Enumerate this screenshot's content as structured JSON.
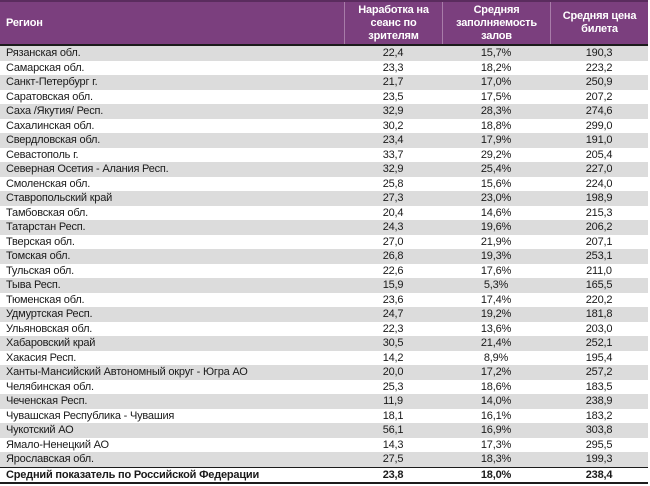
{
  "colors": {
    "header_bg": "#7B3F7E",
    "header_top_border": "#5A2C5E",
    "header_divider": "#A87CA9",
    "row_alt_bg": "#DCDCDC",
    "row_bg": "#FFFFFF",
    "dark_border": "#1C1C1C",
    "header_text": "#FFFFFF",
    "body_text": "#1A1A1A"
  },
  "table": {
    "headers": {
      "region": "Регион",
      "per_session": "Наработка на сеанс по зрителям",
      "occupancy": "Средняя заполняемость залов",
      "price": "Средняя цена билета"
    },
    "rows": [
      {
        "region": "Рязанская обл.",
        "per_session": "22,4",
        "occupancy": "15,7%",
        "price": "190,3"
      },
      {
        "region": "Самарская обл.",
        "per_session": "23,3",
        "occupancy": "18,2%",
        "price": "223,2"
      },
      {
        "region": "Санкт-Петербург г.",
        "per_session": "21,7",
        "occupancy": "17,0%",
        "price": "250,9"
      },
      {
        "region": "Саратовская обл.",
        "per_session": "23,5",
        "occupancy": "17,5%",
        "price": "207,2"
      },
      {
        "region": "Саха /Якутия/ Респ.",
        "per_session": "32,9",
        "occupancy": "28,3%",
        "price": "274,6"
      },
      {
        "region": "Сахалинская обл.",
        "per_session": "30,2",
        "occupancy": "18,8%",
        "price": "299,0"
      },
      {
        "region": "Свердловская обл.",
        "per_session": "23,4",
        "occupancy": "17,9%",
        "price": "191,0"
      },
      {
        "region": "Севастополь г.",
        "per_session": "33,7",
        "occupancy": "29,2%",
        "price": "205,4"
      },
      {
        "region": "Северная Осетия - Алания Респ.",
        "per_session": "32,9",
        "occupancy": "25,4%",
        "price": "227,0"
      },
      {
        "region": "Смоленская обл.",
        "per_session": "25,8",
        "occupancy": "15,6%",
        "price": "224,0"
      },
      {
        "region": "Ставропольский край",
        "per_session": "27,3",
        "occupancy": "23,0%",
        "price": "198,9"
      },
      {
        "region": "Тамбовская обл.",
        "per_session": "20,4",
        "occupancy": "14,6%",
        "price": "215,3"
      },
      {
        "region": "Татарстан Респ.",
        "per_session": "24,3",
        "occupancy": "19,6%",
        "price": "206,2"
      },
      {
        "region": "Тверская обл.",
        "per_session": "27,0",
        "occupancy": "21,9%",
        "price": "207,1"
      },
      {
        "region": "Томская обл.",
        "per_session": "26,8",
        "occupancy": "19,3%",
        "price": "253,1"
      },
      {
        "region": "Тульская обл.",
        "per_session": "22,6",
        "occupancy": "17,6%",
        "price": "211,0"
      },
      {
        "region": "Тыва Респ.",
        "per_session": "15,9",
        "occupancy": "5,3%",
        "price": "165,5"
      },
      {
        "region": "Тюменская обл.",
        "per_session": "23,6",
        "occupancy": "17,4%",
        "price": "220,2"
      },
      {
        "region": "Удмуртская Респ.",
        "per_session": "24,7",
        "occupancy": "19,2%",
        "price": "181,8"
      },
      {
        "region": "Ульяновская обл.",
        "per_session": "22,3",
        "occupancy": "13,6%",
        "price": "203,0"
      },
      {
        "region": "Хабаровский край",
        "per_session": "30,5",
        "occupancy": "21,4%",
        "price": "252,1"
      },
      {
        "region": "Хакасия Респ.",
        "per_session": "14,2",
        "occupancy": "8,9%",
        "price": "195,4"
      },
      {
        "region": "Ханты-Мансийский Автономный округ - Югра АО",
        "per_session": "20,0",
        "occupancy": "17,2%",
        "price": "257,2"
      },
      {
        "region": "Челябинская обл.",
        "per_session": "25,3",
        "occupancy": "18,6%",
        "price": "183,5"
      },
      {
        "region": "Чеченская Респ.",
        "per_session": "11,9",
        "occupancy": "14,0%",
        "price": "238,9"
      },
      {
        "region": "Чувашская Республика - Чувашия",
        "per_session": "18,1",
        "occupancy": "16,1%",
        "price": "183,2"
      },
      {
        "region": "Чукотский АО",
        "per_session": "56,1",
        "occupancy": "16,9%",
        "price": "303,8"
      },
      {
        "region": "Ямало-Ненецкий АО",
        "per_session": "14,3",
        "occupancy": "17,3%",
        "price": "295,5"
      },
      {
        "region": "Ярославская обл.",
        "per_session": "27,5",
        "occupancy": "18,3%",
        "price": "199,3"
      }
    ],
    "total_row": {
      "region": "Средний показатель по Российской Федерации",
      "per_session": "23,8",
      "occupancy": "18,0%",
      "price": "238,4"
    }
  }
}
